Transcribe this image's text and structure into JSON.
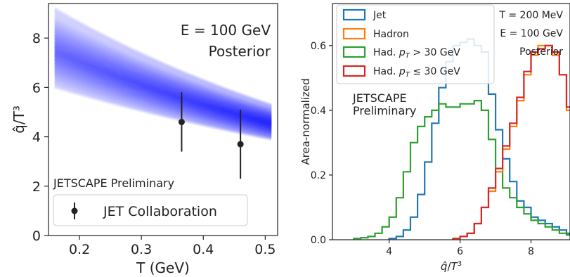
{
  "colors": {
    "blue_band": "#0000ff",
    "jet": "#1f77b4",
    "hadron": "#ff7f0e",
    "had_high": "#2ca02c",
    "had_low": "#d62728",
    "point": "#222222"
  },
  "chart_data": [
    {
      "type": "line",
      "xlabel": "T (GeV)",
      "ylabel": "q̂/T³",
      "xlim": [
        0.15,
        0.52
      ],
      "ylim": [
        0,
        9.4
      ],
      "xticks": [
        "0.2",
        "0.3",
        "0.4",
        "0.5"
      ],
      "yticks": [
        "0",
        "2",
        "4",
        "6",
        "8"
      ],
      "annotation_lines": [
        "E = 100 GeV",
        "Posterior"
      ],
      "preliminary": "JETSCAPE Preliminary",
      "band": {
        "x": [
          0.16,
          0.51
        ],
        "upper": [
          9.2,
          5.3
        ],
        "lower": [
          6.0,
          3.9
        ],
        "center_high": [
          7.5,
          4.7
        ],
        "center_low": [
          6.7,
          4.2
        ]
      },
      "series": [
        {
          "name": "JET Collaboration",
          "points": [
            {
              "x": 0.365,
              "y": 4.6,
              "ylo": 3.4,
              "yhi": 5.8
            },
            {
              "x": 0.46,
              "y": 3.7,
              "ylo": 2.3,
              "yhi": 5.1
            }
          ]
        }
      ],
      "grid": false,
      "legend": "bottom-left"
    },
    {
      "type": "line",
      "xlabel": "q̂/T³",
      "ylabel": "Area-normalized",
      "xlim": [
        2.4,
        9.1
      ],
      "ylim": [
        0,
        0.73
      ],
      "xticks": [
        "4",
        "6",
        "8"
      ],
      "yticks": [
        "0.0",
        "0.2",
        "0.4",
        "0.6",
        "0.8"
      ],
      "annotation_lines": [
        "T = 200 MeV",
        "E = 100 GeV",
        "Posterior"
      ],
      "preliminary_lines": [
        "JETSCAPE",
        "Preliminary"
      ],
      "bin_width": 0.2,
      "series": [
        {
          "name": "Jet",
          "start": 4.0,
          "values": [
            0.004,
            0.01,
            0.03,
            0.07,
            0.14,
            0.24,
            0.36,
            0.47,
            0.55,
            0.6,
            0.61,
            0.62,
            0.6,
            0.58,
            0.45,
            0.34,
            0.25,
            0.18,
            0.12,
            0.1,
            0.07,
            0.06,
            0.05,
            0.04,
            0.03,
            0.02,
            0.01,
            0.005
          ]
        },
        {
          "name": "Hadron",
          "start": 5.8,
          "values": [
            0.004,
            0.01,
            0.02,
            0.05,
            0.1,
            0.15,
            0.21,
            0.28,
            0.35,
            0.43,
            0.51,
            0.57,
            0.6,
            0.6,
            0.57,
            0.51,
            0.4,
            0.3,
            0.16,
            0.05
          ]
        },
        {
          "name": "Had. p_T > 30 GeV",
          "start": 3.0,
          "values": [
            0.004,
            0.006,
            0.01,
            0.02,
            0.04,
            0.07,
            0.13,
            0.21,
            0.3,
            0.35,
            0.38,
            0.4,
            0.42,
            0.41,
            0.41,
            0.42,
            0.42,
            0.43,
            0.4,
            0.31,
            0.22,
            0.16,
            0.13,
            0.1,
            0.08,
            0.06,
            0.05,
            0.04,
            0.03,
            0.02,
            0.015,
            0.01,
            0.006
          ]
        },
        {
          "name": "Had. p_T ≤ 30 GeV",
          "start": 5.8,
          "values": [
            0.004,
            0.01,
            0.02,
            0.05,
            0.1,
            0.16,
            0.22,
            0.29,
            0.36,
            0.44,
            0.52,
            0.58,
            0.59,
            0.6,
            0.58,
            0.51,
            0.41,
            0.31,
            0.17,
            0.06
          ]
        }
      ],
      "legend": "top-left",
      "grid": false
    }
  ]
}
